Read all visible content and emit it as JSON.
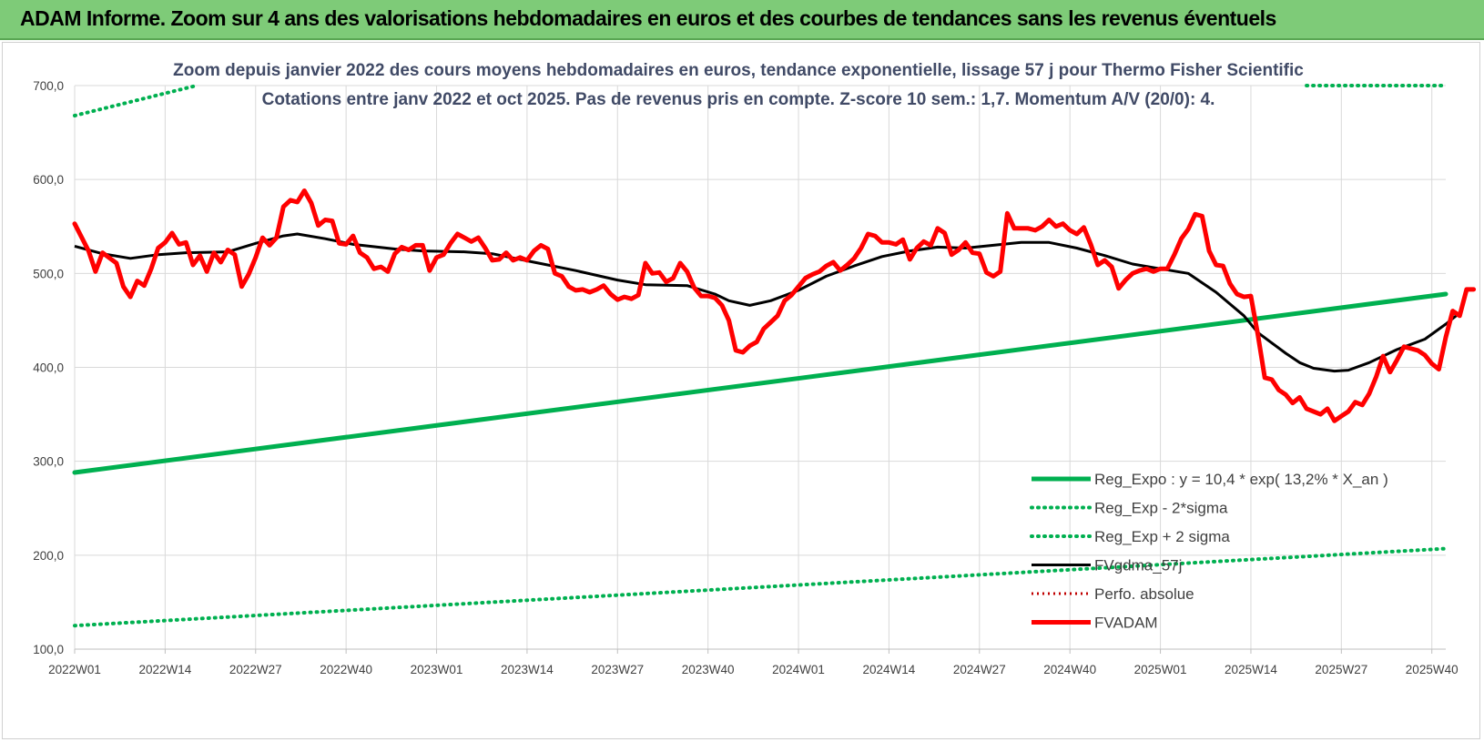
{
  "banner": {
    "title": "ADAM Informe. Zoom sur 4 ans des valorisations hebdomadaires en euros et des courbes de tendances sans les revenus éventuels"
  },
  "colors": {
    "banner_bg": "#7ecb78",
    "reg_expo": "#00b050",
    "fvgdma": "#000000",
    "fvadam": "#ff0000",
    "perfo": "#c00000"
  },
  "chart_data": {
    "type": "line",
    "title_line1": "Zoom depuis janvier 2022 des cours moyens hebdomadaires en euros, tendance exponentielle, lissage 57 j pour Thermo Fisher Scientific",
    "title_line2": "Cotations entre janv 2022 et oct 2025. Pas de revenus pris en compte. Z-score 10 sem.: 1,7. Momentum A/V (20/0): 4.",
    "ylim": [
      100,
      700
    ],
    "yticks": [
      "100,0",
      "200,0",
      "300,0",
      "400,0",
      "500,0",
      "600,0",
      "700,0"
    ],
    "ytick_values": [
      100,
      200,
      300,
      400,
      500,
      600,
      700
    ],
    "xlim": [
      0,
      197
    ],
    "xticks": [
      "2022W01",
      "2022W14",
      "2022W27",
      "2022W40",
      "2023W01",
      "2023W14",
      "2023W27",
      "2023W40",
      "2024W01",
      "2024W14",
      "2024W27",
      "2024W40",
      "2025W01",
      "2025W14",
      "2025W27",
      "2025W40"
    ],
    "xtick_positions": [
      0,
      13,
      26,
      39,
      52,
      65,
      78,
      91,
      104,
      117,
      130,
      143,
      156,
      169,
      182,
      195
    ],
    "legend": [
      {
        "label": "Reg_Expo : y = 10,4 * exp( 13,2% *  X_an )",
        "style": "solid-green"
      },
      {
        "label": "Reg_Exp - 2*sigma",
        "style": "dotted-green"
      },
      {
        "label": "Reg_Exp + 2 sigma",
        "style": "dotted-green"
      },
      {
        "label": "FVgdma_57j",
        "style": "solid-black"
      },
      {
        "label": "Perfo. absolue",
        "style": "dotted-red"
      },
      {
        "label": "FVADAM",
        "style": "solid-red"
      }
    ],
    "series": [
      {
        "name": "Reg_Expo",
        "line_points": [
          [
            0,
            288
          ],
          [
            197,
            478
          ]
        ]
      },
      {
        "name": "Reg_Exp - 2*sigma",
        "line_points": [
          [
            0,
            125
          ],
          [
            197,
            207
          ]
        ]
      },
      {
        "name": "Reg_Exp + 2 sigma",
        "line_points": [
          [
            0,
            668
          ],
          [
            17.5,
            700
          ]
        ],
        "line_points_right": [
          [
            177,
            700
          ],
          [
            197,
            700
          ]
        ]
      },
      {
        "name": "FVgdma_57j",
        "points": [
          [
            0,
            529
          ],
          [
            4,
            521
          ],
          [
            8,
            516
          ],
          [
            12,
            520
          ],
          [
            16,
            522
          ],
          [
            22,
            523
          ],
          [
            26,
            532
          ],
          [
            30,
            540
          ],
          [
            32,
            542
          ],
          [
            36,
            537
          ],
          [
            40,
            531
          ],
          [
            46,
            526
          ],
          [
            50,
            524
          ],
          [
            56,
            523
          ],
          [
            60,
            521
          ],
          [
            66,
            512
          ],
          [
            72,
            503
          ],
          [
            78,
            493
          ],
          [
            82,
            488
          ],
          [
            88,
            487
          ],
          [
            92,
            478
          ],
          [
            94,
            471
          ],
          [
            97,
            466
          ],
          [
            100,
            471
          ],
          [
            104,
            482
          ],
          [
            108,
            497
          ],
          [
            112,
            508
          ],
          [
            116,
            518
          ],
          [
            120,
            524
          ],
          [
            124,
            528
          ],
          [
            128,
            527
          ],
          [
            132,
            530
          ],
          [
            136,
            533
          ],
          [
            140,
            533
          ],
          [
            144,
            527
          ],
          [
            148,
            519
          ],
          [
            152,
            510
          ],
          [
            156,
            505
          ],
          [
            160,
            500
          ],
          [
            164,
            480
          ],
          [
            168,
            455
          ],
          [
            170,
            437
          ],
          [
            174,
            415
          ],
          [
            176,
            405
          ],
          [
            178,
            399
          ],
          [
            181,
            396
          ],
          [
            183,
            397
          ],
          [
            186,
            405
          ],
          [
            190,
            419
          ],
          [
            194,
            430
          ],
          [
            197,
            446
          ],
          [
            199,
            458
          ]
        ]
      },
      {
        "name": "FVADAM",
        "points": [
          [
            0,
            553
          ],
          [
            2,
            524
          ],
          [
            3,
            502
          ],
          [
            4,
            522
          ],
          [
            6,
            511
          ],
          [
            7,
            486
          ],
          [
            8,
            475
          ],
          [
            9,
            492
          ],
          [
            10,
            487
          ],
          [
            11,
            505
          ],
          [
            12,
            527
          ],
          [
            13,
            533
          ],
          [
            14,
            543
          ],
          [
            15,
            531
          ],
          [
            16,
            533
          ],
          [
            17,
            509
          ],
          [
            18,
            519
          ],
          [
            19,
            502
          ],
          [
            20,
            522
          ],
          [
            21,
            512
          ],
          [
            22,
            525
          ],
          [
            23,
            520
          ],
          [
            24,
            486
          ],
          [
            25,
            499
          ],
          [
            26,
            517
          ],
          [
            27,
            538
          ],
          [
            28,
            530
          ],
          [
            29,
            538
          ],
          [
            30,
            571
          ],
          [
            31,
            578
          ],
          [
            32,
            576
          ],
          [
            33,
            588
          ],
          [
            34,
            575
          ],
          [
            35,
            551
          ],
          [
            36,
            557
          ],
          [
            37,
            556
          ],
          [
            38,
            532
          ],
          [
            39,
            531
          ],
          [
            40,
            540
          ],
          [
            41,
            522
          ],
          [
            42,
            517
          ],
          [
            43,
            505
          ],
          [
            44,
            507
          ],
          [
            45,
            502
          ],
          [
            46,
            521
          ],
          [
            47,
            528
          ],
          [
            48,
            525
          ],
          [
            49,
            530
          ],
          [
            50,
            530
          ],
          [
            51,
            503
          ],
          [
            52,
            517
          ],
          [
            53,
            520
          ],
          [
            54,
            532
          ],
          [
            55,
            542
          ],
          [
            56,
            538
          ],
          [
            57,
            534
          ],
          [
            58,
            538
          ],
          [
            59,
            527
          ],
          [
            60,
            514
          ],
          [
            61,
            515
          ],
          [
            62,
            522
          ],
          [
            63,
            514
          ],
          [
            64,
            517
          ],
          [
            65,
            514
          ],
          [
            66,
            524
          ],
          [
            67,
            530
          ],
          [
            68,
            526
          ],
          [
            69,
            500
          ],
          [
            70,
            497
          ],
          [
            71,
            486
          ],
          [
            72,
            482
          ],
          [
            73,
            483
          ],
          [
            74,
            480
          ],
          [
            75,
            483
          ],
          [
            76,
            487
          ],
          [
            77,
            478
          ],
          [
            78,
            472
          ],
          [
            79,
            475
          ],
          [
            80,
            473
          ],
          [
            81,
            477
          ],
          [
            82,
            511
          ],
          [
            83,
            500
          ],
          [
            84,
            501
          ],
          [
            85,
            491
          ],
          [
            86,
            495
          ],
          [
            87,
            511
          ],
          [
            88,
            502
          ],
          [
            89,
            485
          ],
          [
            90,
            476
          ],
          [
            91,
            476
          ],
          [
            92,
            474
          ],
          [
            93,
            466
          ],
          [
            94,
            450
          ],
          [
            95,
            418
          ],
          [
            96,
            416
          ],
          [
            97,
            423
          ],
          [
            98,
            427
          ],
          [
            99,
            441
          ],
          [
            100,
            448
          ],
          [
            101,
            455
          ],
          [
            102,
            471
          ],
          [
            103,
            477
          ],
          [
            104,
            486
          ],
          [
            105,
            495
          ],
          [
            106,
            499
          ],
          [
            107,
            502
          ],
          [
            108,
            508
          ],
          [
            109,
            512
          ],
          [
            110,
            503
          ],
          [
            111,
            509
          ],
          [
            112,
            516
          ],
          [
            113,
            527
          ],
          [
            114,
            542
          ],
          [
            115,
            540
          ],
          [
            116,
            533
          ],
          [
            117,
            533
          ],
          [
            118,
            531
          ],
          [
            119,
            536
          ],
          [
            120,
            515
          ],
          [
            121,
            527
          ],
          [
            122,
            534
          ],
          [
            123,
            530
          ],
          [
            124,
            548
          ],
          [
            125,
            543
          ],
          [
            126,
            520
          ],
          [
            127,
            525
          ],
          [
            128,
            533
          ],
          [
            129,
            522
          ],
          [
            130,
            521
          ],
          [
            131,
            501
          ],
          [
            132,
            497
          ],
          [
            133,
            502
          ],
          [
            134,
            564
          ],
          [
            135,
            548
          ],
          [
            136,
            548
          ],
          [
            137,
            548
          ],
          [
            138,
            546
          ],
          [
            139,
            550
          ],
          [
            140,
            557
          ],
          [
            141,
            550
          ],
          [
            142,
            553
          ],
          [
            143,
            546
          ],
          [
            144,
            542
          ],
          [
            145,
            549
          ],
          [
            146,
            531
          ],
          [
            147,
            509
          ],
          [
            148,
            514
          ],
          [
            149,
            507
          ],
          [
            150,
            484
          ],
          [
            151,
            493
          ],
          [
            152,
            500
          ],
          [
            153,
            503
          ],
          [
            154,
            505
          ],
          [
            155,
            502
          ],
          [
            156,
            505
          ],
          [
            157,
            505
          ],
          [
            158,
            520
          ],
          [
            159,
            537
          ],
          [
            160,
            547
          ],
          [
            161,
            563
          ],
          [
            162,
            561
          ],
          [
            163,
            524
          ],
          [
            164,
            509
          ],
          [
            165,
            508
          ],
          [
            166,
            489
          ],
          [
            167,
            478
          ],
          [
            168,
            475
          ],
          [
            169,
            476
          ],
          [
            170,
            435
          ],
          [
            171,
            389
          ],
          [
            172,
            387
          ],
          [
            173,
            376
          ],
          [
            174,
            371
          ],
          [
            175,
            362
          ],
          [
            176,
            368
          ],
          [
            177,
            356
          ],
          [
            178,
            353
          ],
          [
            179,
            350
          ],
          [
            180,
            356
          ],
          [
            181,
            343
          ],
          [
            182,
            348
          ],
          [
            183,
            353
          ],
          [
            184,
            363
          ],
          [
            185,
            360
          ],
          [
            186,
            372
          ],
          [
            187,
            390
          ],
          [
            188,
            412
          ],
          [
            189,
            395
          ],
          [
            190,
            408
          ],
          [
            191,
            422
          ],
          [
            192,
            420
          ],
          [
            193,
            418
          ],
          [
            194,
            413
          ],
          [
            195,
            404
          ],
          [
            196,
            398
          ],
          [
            197,
            432
          ],
          [
            198,
            460
          ],
          [
            199,
            455
          ],
          [
            200,
            483
          ],
          [
            201,
            483
          ]
        ]
      }
    ]
  }
}
